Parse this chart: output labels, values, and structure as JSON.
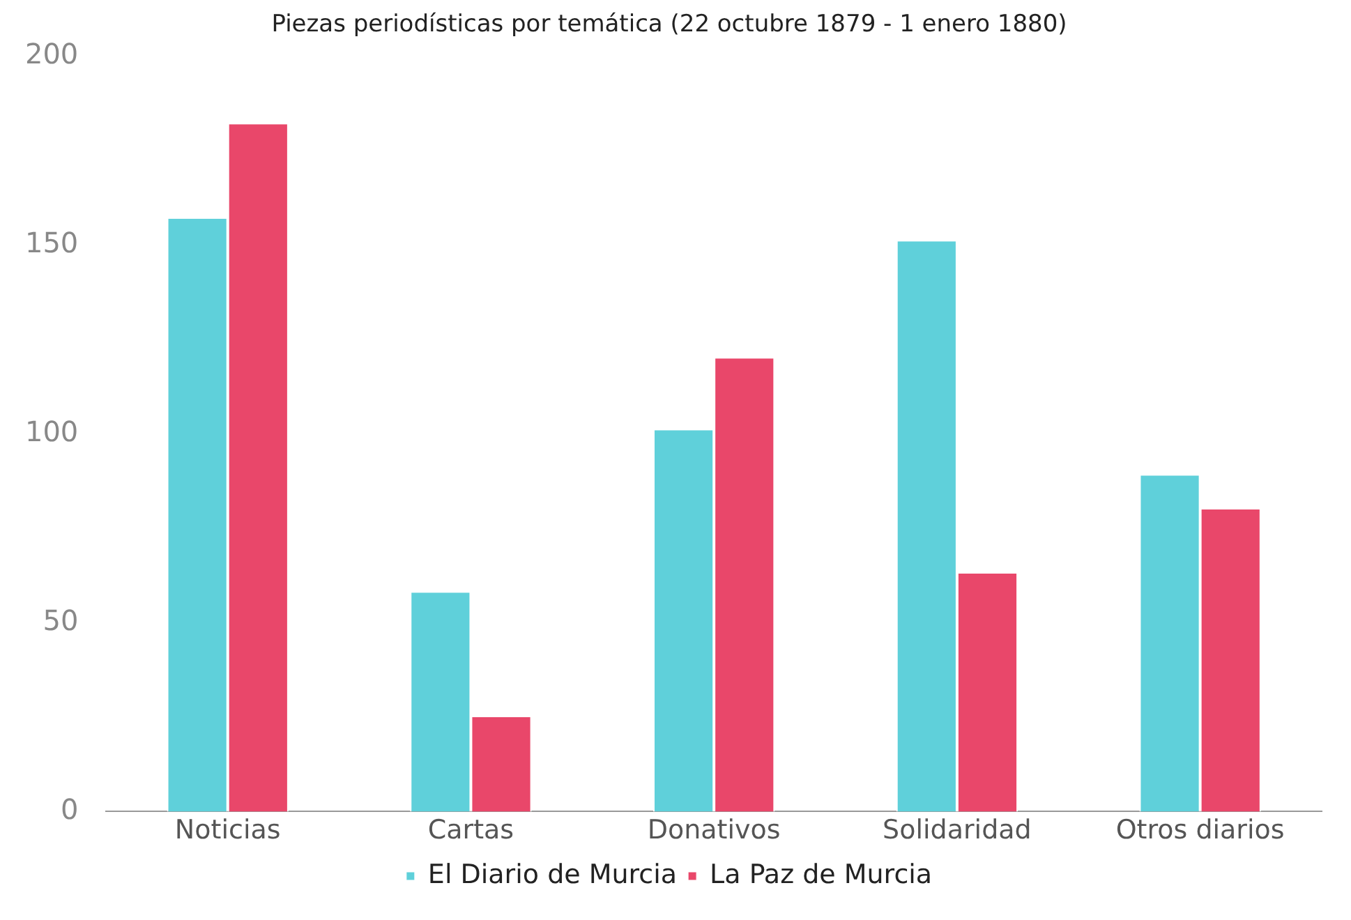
{
  "chart_data": {
    "type": "bar",
    "title": "Piezas periodísticas por temática (22 octubre 1879 - 1 enero 1880)",
    "categories": [
      "Noticias",
      "Cartas",
      "Donativos",
      "Solidaridad",
      "Otros diarios"
    ],
    "series": [
      {
        "name": "El Diario de Murcia",
        "color": "#5fd0da",
        "values": [
          157,
          58,
          101,
          151,
          89
        ]
      },
      {
        "name": "La Paz de Murcia",
        "color": "#e9476a",
        "values": [
          182,
          25,
          120,
          63,
          80
        ]
      }
    ],
    "ylim": [
      0,
      200
    ],
    "yticks": [
      0,
      50,
      100,
      150,
      200
    ],
    "grid": false,
    "legend": "bottom"
  }
}
